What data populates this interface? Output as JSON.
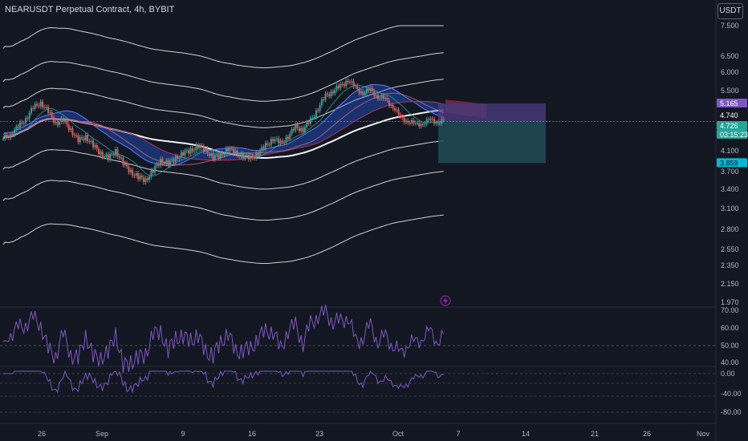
{
  "header": {
    "title": "NEARUSDT Perpetual Contract, 4h, BYBIT",
    "currency": "USDT"
  },
  "colors": {
    "bg": "#131722",
    "up": "#26a69a",
    "down": "#ef5350",
    "rsi": "#7e57c2",
    "cloud_bull": "#2962ff",
    "cloud_bear": "#b2315a",
    "band": "#ffffff",
    "target": "#1f4f5a",
    "stop": "#4a3b7a"
  },
  "chart_data": {
    "type": "candlestick",
    "symbol": "NEARUSDT",
    "interval": "4h",
    "exchange": "BYBIT",
    "price_axis": {
      "ticks": [
        7.5,
        6.5,
        6.0,
        5.5,
        4.1,
        3.7,
        3.4,
        3.1,
        2.8,
        2.55,
        2.35,
        2.15,
        1.97
      ],
      "tick_labels": [
        "7.500",
        "6.500",
        "6.000",
        "5.500",
        "4.100",
        "3.700",
        "3.400",
        "3.100",
        "2.800",
        "2.550",
        "2.350",
        "2.150",
        "1.970"
      ]
    },
    "x_axis": {
      "labels": [
        "26",
        "Sep",
        "9",
        "16",
        "23",
        "Oct",
        "7",
        "14",
        "21",
        "26",
        "Nov"
      ]
    },
    "price_tags": [
      {
        "value": "5.165",
        "color": "#7e57c2"
      },
      {
        "value": "4.740",
        "color": "#131722"
      },
      {
        "value": "4.726",
        "color": "#26a69a"
      },
      {
        "value": "03:15:23",
        "color": "#26a69a"
      },
      {
        "value": "3.859",
        "color": "#00bcd4"
      }
    ],
    "close_series": [
      4.35,
      4.45,
      4.6,
      4.8,
      5.05,
      5.2,
      4.95,
      4.7,
      4.75,
      4.55,
      4.3,
      4.4,
      4.2,
      4.05,
      3.95,
      4.1,
      3.85,
      3.7,
      3.6,
      3.55,
      3.72,
      3.9,
      3.85,
      3.95,
      4.05,
      4.1,
      4.2,
      4.1,
      3.98,
      4.0,
      4.15,
      4.05,
      4.0,
      3.95,
      4.05,
      4.2,
      4.35,
      4.25,
      4.4,
      4.6,
      4.55,
      4.75,
      5.05,
      5.35,
      5.5,
      5.6,
      5.8,
      5.55,
      5.45,
      5.5,
      5.35,
      5.25,
      5.1,
      4.8,
      4.75,
      4.65,
      4.7,
      4.75,
      4.73
    ],
    "trade_box": {
      "entry": 4.726,
      "stop": 5.165,
      "target": 3.859
    },
    "rsi": {
      "ticks": [
        "70.00",
        "60.00",
        "50.00",
        "40.00"
      ]
    },
    "osc": {
      "ticks": [
        "0.00",
        "-40.00",
        "-80.00"
      ]
    }
  }
}
